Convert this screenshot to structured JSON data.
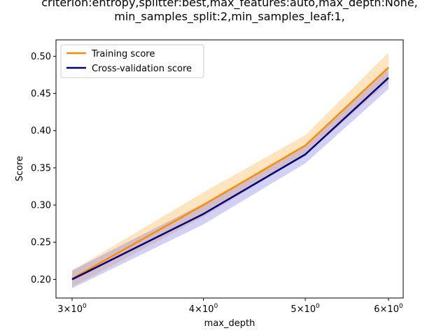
{
  "chart_data": {
    "type": "line",
    "title_lines": [
      "criterion:entropy,splitter:best,max_features:auto,max_depth:None,",
      "min_samples_split:2,min_samples_leaf:1,"
    ],
    "xlabel": "max_depth",
    "ylabel": "Score",
    "x_scale": "log",
    "x": [
      3,
      4,
      5,
      6
    ],
    "x_tick_labels": [
      {
        "mant": "3",
        "exp": "0"
      },
      {
        "mant": "4",
        "exp": "0"
      },
      {
        "mant": "5",
        "exp": "0"
      },
      {
        "mant": "6",
        "exp": "0"
      }
    ],
    "ylim": [
      0.175,
      0.522
    ],
    "y_ticks": [
      0.2,
      0.25,
      0.3,
      0.35,
      0.4,
      0.45,
      0.5
    ],
    "y_tick_labels": [
      "0.20",
      "0.25",
      "0.30",
      "0.35",
      "0.40",
      "0.45",
      "0.50"
    ],
    "legend_position": "top-left",
    "series": [
      {
        "name": "Training score",
        "color": "#ff8c00",
        "values": [
          0.201,
          0.3,
          0.38,
          0.485
        ],
        "band_lower": [
          0.19,
          0.284,
          0.367,
          0.465
        ],
        "band_upper": [
          0.212,
          0.317,
          0.394,
          0.505
        ],
        "band_color": "#ffa530"
      },
      {
        "name": "Cross-validation score",
        "color": "#000080",
        "values": [
          0.2,
          0.288,
          0.368,
          0.471
        ],
        "band_lower": [
          0.188,
          0.274,
          0.356,
          0.456
        ],
        "band_upper": [
          0.212,
          0.302,
          0.38,
          0.486
        ],
        "band_color": "#6666dd"
      }
    ]
  }
}
